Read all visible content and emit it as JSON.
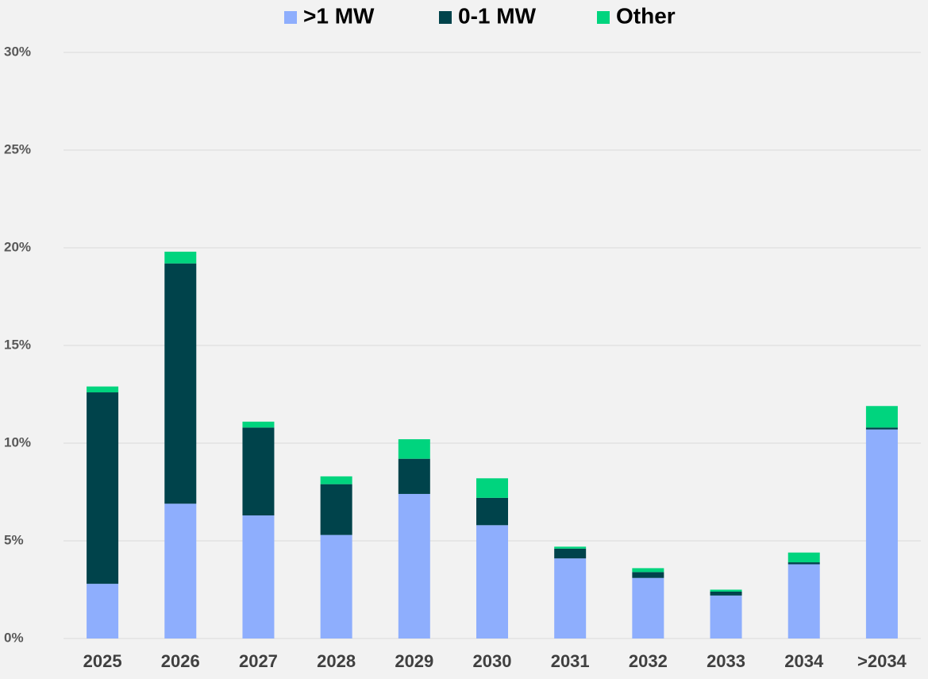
{
  "chart_data": {
    "type": "stacked_bar",
    "categories": [
      "2025",
      "2026",
      "2027",
      "2028",
      "2029",
      "2030",
      "2031",
      "2032",
      "2033",
      "2034",
      ">2034"
    ],
    "series": [
      {
        "name": ">1 MW",
        "color": "#8eaefd",
        "values": [
          2.8,
          6.9,
          6.3,
          5.3,
          7.4,
          5.8,
          4.1,
          3.1,
          2.2,
          3.8,
          10.7
        ]
      },
      {
        "name": "0-1 MW",
        "color": "#00434b",
        "values": [
          9.8,
          12.3,
          4.5,
          2.6,
          1.8,
          1.4,
          0.5,
          0.3,
          0.2,
          0.1,
          0.1
        ]
      },
      {
        "name": "Other",
        "color": "#00d47e",
        "values": [
          0.3,
          0.6,
          0.3,
          0.4,
          1.0,
          1.0,
          0.1,
          0.2,
          0.1,
          0.5,
          1.1
        ]
      }
    ],
    "ylim": [
      0,
      30
    ],
    "yticks": [
      {
        "value": 0,
        "label": "0%"
      },
      {
        "value": 5,
        "label": "5%"
      },
      {
        "value": 10,
        "label": "10%"
      },
      {
        "value": 15,
        "label": "15%"
      },
      {
        "value": 20,
        "label": "20%"
      },
      {
        "value": 25,
        "label": "25%"
      },
      {
        "value": 30,
        "label": "30%"
      }
    ],
    "grid": true,
    "legend": "top"
  }
}
